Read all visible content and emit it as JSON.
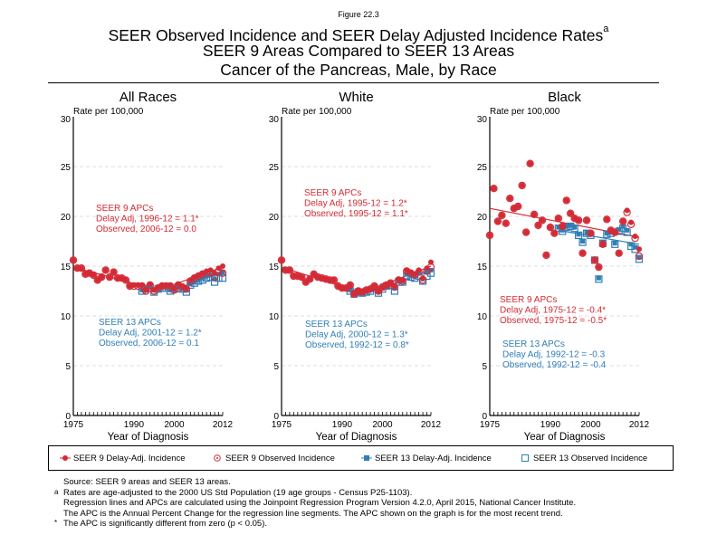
{
  "figure_label": "Figure 22.3",
  "title": {
    "line1": "SEER Observed Incidence and SEER Delay Adjusted Incidence Rates",
    "line1_superscript": "a",
    "line2": "SEER 9 Areas Compared to SEER 13 Areas",
    "line3": "Cancer of the Pancreas, Male, by Race"
  },
  "colors": {
    "seer9": "#d42a35",
    "seer13": "#2f7fb5",
    "grid": "#dddddd"
  },
  "legend": [
    {
      "label": "SEER 9 Delay-Adj. Incidence",
      "marker": "filled-circle",
      "series": "seer9"
    },
    {
      "label": "SEER 9 Observed Incidence",
      "marker": "open-circle",
      "series": "seer9"
    },
    {
      "label": "SEER 13 Delay-Adj. Incidence",
      "marker": "filled-square",
      "series": "seer13"
    },
    {
      "label": "SEER 13 Observed Incidence",
      "marker": "open-square",
      "series": "seer13"
    }
  ],
  "notes": [
    {
      "mark": "",
      "text": "Source: SEER 9 areas and SEER 13 areas."
    },
    {
      "mark": "a",
      "text": "Rates are age-adjusted to the 2000 US Std Population (19 age groups - Census P25-1103)."
    },
    {
      "mark": "",
      "text": "Regression lines and APCs are calculated using the Joinpoint Regression Program Version 4.2.0, April 2015, National Cancer Institute."
    },
    {
      "mark": "",
      "text": "The APC is the Annual Percent Change for the regression line segments. The APC shown on the graph is for the most recent trend."
    },
    {
      "mark": "*",
      "text": "The APC is significantly different from zero (p < 0.05)."
    }
  ],
  "chart_data": [
    {
      "type": "scatter",
      "title": "All Races",
      "ylabel": "Rate per 100,000",
      "xlabel": "Year of Diagnosis",
      "xlim": [
        1975,
        2012
      ],
      "ylim": [
        0,
        30
      ],
      "xticks": [
        "1975",
        "1990",
        "2000",
        "2012"
      ],
      "yticks": [
        "0",
        "5",
        "10",
        "15",
        "20",
        "25",
        "30"
      ],
      "grid": true,
      "apc_seer9": {
        "heading": "SEER 9 APCs",
        "delay": "Delay Adj, 1996-12 = 1.1*",
        "observed": "Observed, 2006-12 = 0.0"
      },
      "apc_seer13": {
        "heading": "SEER 13 APCs",
        "delay": "Delay Adj, 2001-12 = 1.2*",
        "observed": "Observed, 2006-12 = 0.1"
      },
      "x9": [
        1975,
        1976,
        1977,
        1978,
        1979,
        1980,
        1981,
        1982,
        1983,
        1984,
        1985,
        1986,
        1987,
        1988,
        1989,
        1990,
        1991,
        1992,
        1993,
        1994,
        1995,
        1996,
        1997,
        1998,
        1999,
        2000,
        2001,
        2002,
        2003,
        2004,
        2005,
        2006,
        2007,
        2008,
        2009,
        2010,
        2011,
        2012
      ],
      "seer9_delay": [
        15.6,
        14.8,
        14.8,
        14.2,
        14.3,
        14.1,
        13.6,
        13.9,
        14.6,
        13.9,
        14.4,
        13.8,
        13.8,
        13.6,
        13.0,
        13.1,
        13.1,
        13.1,
        12.6,
        13.2,
        12.6,
        12.9,
        13.1,
        13.1,
        13.1,
        12.7,
        13.2,
        13.0,
        12.8,
        13.6,
        13.9,
        14.1,
        14.3,
        14.5,
        14.6,
        14.3,
        14.8,
        15.0
      ],
      "seer9_observed": [
        15.6,
        14.8,
        14.8,
        14.2,
        14.3,
        14.1,
        13.6,
        13.9,
        14.6,
        13.9,
        14.4,
        13.8,
        13.8,
        13.6,
        13.0,
        13.0,
        13.0,
        13.0,
        12.5,
        13.1,
        12.5,
        12.8,
        13.0,
        13.0,
        13.0,
        12.6,
        13.1,
        12.9,
        12.7,
        13.5,
        13.8,
        14.0,
        14.2,
        14.3,
        14.4,
        13.9,
        14.5,
        14.3
      ],
      "seer9_fit": [
        [
          1975,
          14.9
        ],
        [
          1996,
          12.6
        ],
        [
          2012,
          14.9
        ]
      ],
      "x13": [
        1992,
        1993,
        1994,
        1995,
        1996,
        1997,
        1998,
        1999,
        2000,
        2001,
        2002,
        2003,
        2004,
        2005,
        2006,
        2007,
        2008,
        2009,
        2010,
        2011,
        2012
      ],
      "seer13_delay": [
        12.6,
        12.8,
        12.9,
        12.6,
        12.8,
        12.9,
        12.9,
        12.6,
        12.8,
        12.9,
        12.8,
        12.6,
        13.2,
        13.4,
        13.6,
        13.8,
        14.0,
        14.1,
        13.7,
        14.2,
        14.4
      ],
      "seer13_observed": [
        12.5,
        12.7,
        12.8,
        12.4,
        12.7,
        12.8,
        12.8,
        12.5,
        12.7,
        12.8,
        12.7,
        12.4,
        13.1,
        13.3,
        13.5,
        13.6,
        13.8,
        13.9,
        13.4,
        13.8,
        13.8
      ],
      "seer13_fit": [
        [
          1992,
          12.7
        ],
        [
          2001,
          12.8
        ],
        [
          2012,
          14.4
        ]
      ]
    },
    {
      "type": "scatter",
      "title": "White",
      "ylabel": "Rate per 100,000",
      "xlabel": "Year of Diagnosis",
      "xlim": [
        1975,
        2012
      ],
      "ylim": [
        0,
        30
      ],
      "xticks": [
        "1975",
        "1990",
        "2000",
        "2012"
      ],
      "yticks": [
        "0",
        "5",
        "10",
        "15",
        "20",
        "25",
        "30"
      ],
      "grid": true,
      "apc_seer9": {
        "heading": "SEER 9 APCs",
        "delay": "Delay Adj, 1995-12 = 1.2*",
        "observed": "Observed, 1995-12 = 1.1*"
      },
      "apc_seer13": {
        "heading": "SEER 13 APCs",
        "delay": "Delay Adj, 2000-12 = 1.3*",
        "observed": "Observed, 1992-12 = 0.8*"
      },
      "x9": [
        1975,
        1976,
        1977,
        1978,
        1979,
        1980,
        1981,
        1982,
        1983,
        1984,
        1985,
        1986,
        1987,
        1988,
        1989,
        1990,
        1991,
        1992,
        1993,
        1994,
        1995,
        1996,
        1997,
        1998,
        1999,
        2000,
        2001,
        2002,
        2003,
        2004,
        2005,
        2006,
        2007,
        2008,
        2009,
        2010,
        2011,
        2012
      ],
      "seer9_delay": [
        15.6,
        14.6,
        14.6,
        14.0,
        14.0,
        13.9,
        13.4,
        13.7,
        14.2,
        13.9,
        13.8,
        13.7,
        13.6,
        13.6,
        13.0,
        12.8,
        12.8,
        13.1,
        12.2,
        12.5,
        12.4,
        12.6,
        12.7,
        13.0,
        12.5,
        12.9,
        13.1,
        13.3,
        13.0,
        13.7,
        13.6,
        14.6,
        14.4,
        14.2,
        14.6,
        13.8,
        14.8,
        15.4
      ],
      "seer9_observed": [
        15.6,
        14.6,
        14.6,
        14.0,
        14.0,
        13.9,
        13.4,
        13.7,
        14.2,
        13.9,
        13.8,
        13.7,
        13.6,
        13.6,
        13.0,
        12.8,
        12.8,
        13.1,
        12.2,
        12.5,
        12.4,
        12.6,
        12.7,
        13.0,
        12.5,
        12.9,
        13.1,
        13.3,
        12.9,
        13.6,
        13.5,
        14.5,
        14.3,
        14.1,
        14.4,
        13.6,
        14.5,
        14.9
      ],
      "seer9_fit": [
        [
          1975,
          14.9
        ],
        [
          1995,
          12.3
        ],
        [
          2012,
          15.0
        ]
      ],
      "x13": [
        1992,
        1993,
        1994,
        1995,
        1996,
        1997,
        1998,
        1999,
        2000,
        2001,
        2002,
        2003,
        2004,
        2005,
        2006,
        2007,
        2008,
        2009,
        2010,
        2011,
        2012
      ],
      "seer13_delay": [
        12.6,
        12.3,
        12.5,
        12.4,
        12.5,
        12.6,
        12.9,
        12.4,
        12.8,
        13.1,
        13.2,
        12.8,
        13.5,
        13.5,
        14.2,
        14.1,
        14.0,
        14.3,
        13.7,
        14.4,
        14.6
      ],
      "seer13_observed": [
        12.5,
        12.2,
        12.4,
        12.3,
        12.4,
        12.5,
        12.8,
        12.3,
        12.7,
        13.0,
        13.1,
        12.5,
        13.4,
        13.4,
        14.0,
        13.9,
        13.8,
        14.0,
        13.5,
        14.0,
        14.3
      ],
      "seer13_fit": [
        [
          1992,
          12.3
        ],
        [
          2000,
          12.7
        ],
        [
          2012,
          14.7
        ]
      ]
    },
    {
      "type": "scatter",
      "title": "Black",
      "ylabel": "Rate per 100,000",
      "xlabel": "Year of Diagnosis",
      "xlim": [
        1975,
        2012
      ],
      "ylim": [
        0,
        30
      ],
      "xticks": [
        "1975",
        "1990",
        "2000",
        "2012"
      ],
      "yticks": [
        "0",
        "5",
        "10",
        "15",
        "20",
        "25",
        "30"
      ],
      "grid": true,
      "apc_seer9": {
        "heading": "SEER 9 APCs",
        "delay": "Delay Adj, 1975-12 = -0.4*",
        "observed": "Observed, 1975-12 = -0.5*"
      },
      "apc_seer13": {
        "heading": "SEER 13 APCs",
        "delay": "Delay Adj, 1992-12 = -0.3",
        "observed": "Observed, 1992-12 = -0.4"
      },
      "x9": [
        1975,
        1976,
        1977,
        1978,
        1979,
        1980,
        1981,
        1982,
        1983,
        1984,
        1985,
        1986,
        1987,
        1988,
        1989,
        1990,
        1991,
        1992,
        1993,
        1994,
        1995,
        1996,
        1997,
        1998,
        1999,
        2000,
        2001,
        2002,
        2003,
        2004,
        2005,
        2006,
        2007,
        2008,
        2009,
        2010,
        2011,
        2012
      ],
      "seer9_delay": [
        18.1,
        22.8,
        19.5,
        20.1,
        19.3,
        21.8,
        20.8,
        21.0,
        23.1,
        18.4,
        25.3,
        20.2,
        19.1,
        19.6,
        16.1,
        18.9,
        18.3,
        19.8,
        19.0,
        21.6,
        20.3,
        19.8,
        19.6,
        16.3,
        19.6,
        18.3,
        15.6,
        14.9,
        17.2,
        19.7,
        18.6,
        18.4,
        16.3,
        19.5,
        20.6,
        19.4,
        18.0,
        16.7
      ],
      "seer9_observed": [
        18.1,
        22.8,
        19.5,
        20.1,
        19.3,
        21.8,
        20.8,
        21.0,
        23.1,
        18.4,
        25.3,
        20.2,
        19.1,
        19.6,
        16.1,
        18.9,
        18.3,
        19.8,
        19.0,
        21.6,
        20.3,
        19.8,
        19.6,
        16.3,
        19.6,
        18.3,
        15.6,
        14.9,
        17.2,
        19.7,
        18.6,
        18.4,
        16.3,
        19.5,
        20.4,
        19.2,
        17.8,
        16.0
      ],
      "seer9_fit": [
        [
          1975,
          20.8
        ],
        [
          2012,
          17.9
        ]
      ],
      "x13": [
        1992,
        1993,
        1994,
        1995,
        1996,
        1997,
        1998,
        1999,
        2000,
        2001,
        2002,
        2003,
        2004,
        2005,
        2006,
        2007,
        2008,
        2009,
        2010,
        2011,
        2012
      ],
      "seer13_delay": [
        18.9,
        18.6,
        19.0,
        19.1,
        18.9,
        18.2,
        17.5,
        18.4,
        18.2,
        15.7,
        13.8,
        17.4,
        18.3,
        18.4,
        17.3,
        18.7,
        19.0,
        18.6,
        17.2,
        16.9,
        15.9
      ],
      "seer13_observed": [
        18.8,
        18.5,
        18.9,
        19.0,
        18.8,
        18.1,
        17.4,
        18.3,
        18.1,
        15.6,
        13.7,
        17.3,
        18.2,
        18.3,
        17.2,
        18.5,
        18.8,
        18.4,
        17.0,
        16.7,
        15.7
      ],
      "seer13_fit": [
        [
          1992,
          18.6
        ],
        [
          2012,
          17.2
        ]
      ]
    }
  ]
}
